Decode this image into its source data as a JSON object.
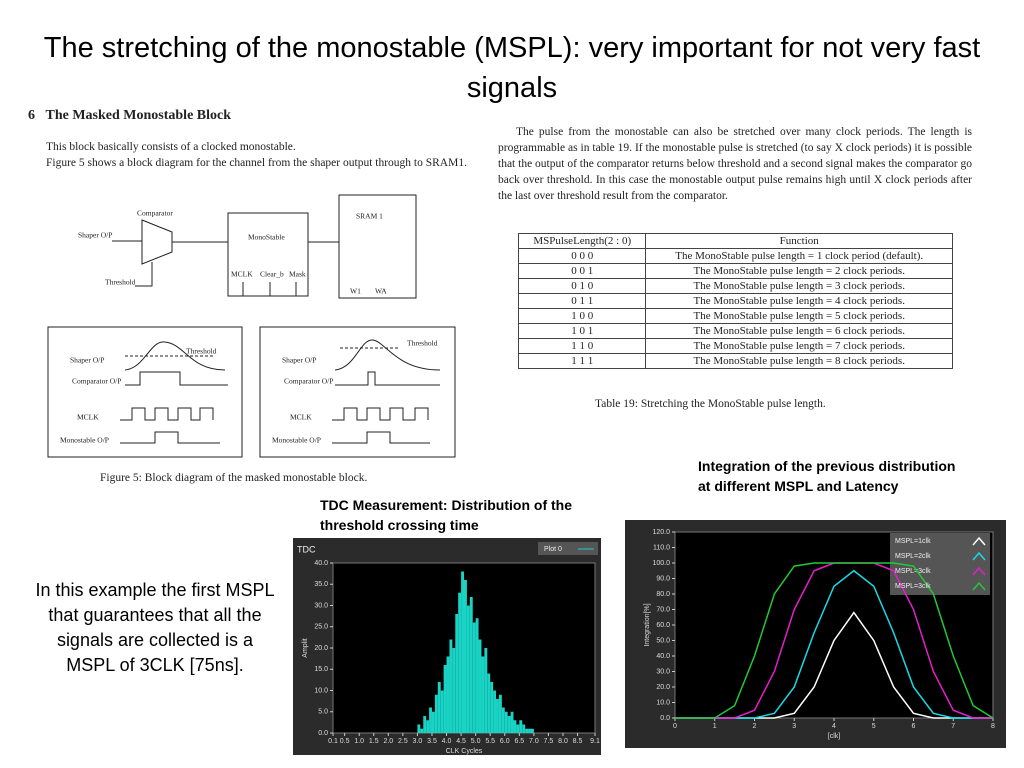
{
  "title": "The stretching of the monostable (MSPL): very important for not very fast signals",
  "section": {
    "number": "6",
    "heading": "The Masked Monostable Block",
    "paragraphs": [
      "This block basically consists of a clocked monostable.",
      "Figure 5 shows a block diagram for the channel from the shaper output through to SRAM1."
    ]
  },
  "block_diagram": {
    "comparator": "Comparator",
    "shaper_in": "Shaper O/P",
    "threshold": "Threshold",
    "monostable": "MonoStable",
    "mclk": "MCLK",
    "clear": "Clear_b",
    "mask": "Mask",
    "sram": "SRAM 1",
    "w1": "W1",
    "wa": "WA"
  },
  "timing_diagrams": [
    {
      "shaper": "Shaper O/P",
      "threshold": "Threshold",
      "comparator": "Comparator O/P",
      "mclk": "MCLK",
      "monostable": "Monostable O/P"
    },
    {
      "shaper": "Shaper O/P",
      "threshold": "Threshold",
      "comparator": "Comparator O/P",
      "mclk": "MCLK",
      "monostable": "Monostable  O/P"
    }
  ],
  "figure_caption": "Figure 5: Block diagram of the masked monostable block.",
  "right_paragraph": "The pulse from the monostable can also be stretched over many clock periods. The length is programmable as in table 19. If the monostable pulse is stretched (to say X clock periods) it is possible that the output of the comparator returns below threshold and a second signal makes the comparator go back over threshold. In this case the monostable output pulse remains high until X clock periods after the last over threshold result from the comparator.",
  "table": {
    "header": [
      "MSPulseLength(2 : 0)",
      "Function"
    ],
    "rows": [
      [
        "0 0 0",
        "The MonoStable pulse length = 1 clock period (default)."
      ],
      [
        "0 0 1",
        "The MonoStable pulse length = 2 clock periods."
      ],
      [
        "0 1 0",
        "The MonoStable pulse length = 3 clock periods."
      ],
      [
        "0 1 1",
        "The MonoStable pulse length = 4 clock periods."
      ],
      [
        "1 0 0",
        "The MonoStable pulse length = 5 clock periods."
      ],
      [
        "1 0 1",
        "The MonoStable pulse length = 6 clock periods."
      ],
      [
        "1 1 0",
        "The MonoStable pulse length = 7 clock periods."
      ],
      [
        "1 1 1",
        "The MonoStable pulse length = 8 clock periods."
      ]
    ]
  },
  "table_caption": "Table 19: Stretching the MonoStable pulse length.",
  "annotations": {
    "integration": "Integration of the previous distribution at different MSPL and Latency",
    "tdc": "TDC Measurement: Distribution of the threshold crossing time",
    "conclusion": "In this example the first MSPL that guarantees that all the signals are collected is a MSPL of 3CLK [75ns]."
  },
  "tdc_chart": {
    "type": "histogram",
    "title": "TDC",
    "legend": "Plot 0",
    "xlabel": "CLK Cycles",
    "ylabel": "Amplit",
    "color": "#19d3c5",
    "grid": false,
    "bins": [
      3.0,
      3.1,
      3.2,
      3.3,
      3.4,
      3.5,
      3.6,
      3.7,
      3.8,
      3.9,
      4.0,
      4.1,
      4.2,
      4.3,
      4.4,
      4.5,
      4.6,
      4.7,
      4.8,
      4.9,
      5.0,
      5.1,
      5.2,
      5.3,
      5.4,
      5.5,
      5.6,
      5.7,
      5.8,
      5.9,
      6.0,
      6.1,
      6.2,
      6.3,
      6.4,
      6.5,
      6.6,
      6.7,
      6.8,
      6.9,
      7.0
    ],
    "values": [
      2,
      1,
      4,
      3,
      6,
      5,
      9,
      12,
      10,
      16,
      18,
      22,
      20,
      28,
      33,
      38,
      36,
      30,
      32,
      26,
      27,
      22,
      18,
      20,
      14,
      12,
      10,
      8,
      9,
      6,
      5,
      4,
      5,
      3,
      2,
      3,
      2,
      1,
      1,
      1
    ],
    "xlim": [
      0.1,
      9.1
    ],
    "xticks": [
      {
        "value": 0.1,
        "label": "0.1"
      },
      {
        "value": 0.5,
        "label": "0.5"
      },
      {
        "value": 1.0,
        "label": "1.0"
      },
      {
        "value": 1.5,
        "label": "1.5"
      },
      {
        "value": 2.0,
        "label": "2.0"
      },
      {
        "value": 2.5,
        "label": "2.5"
      },
      {
        "value": 3.0,
        "label": "3.0"
      },
      {
        "value": 3.5,
        "label": "3.5"
      },
      {
        "value": 4.0,
        "label": "4.0"
      },
      {
        "value": 4.5,
        "label": "4.5"
      },
      {
        "value": 5.0,
        "label": "5.0"
      },
      {
        "value": 5.5,
        "label": "5.5"
      },
      {
        "value": 6.0,
        "label": "6.0"
      },
      {
        "value": 6.5,
        "label": "6.5"
      },
      {
        "value": 7.0,
        "label": "7.0"
      },
      {
        "value": 7.5,
        "label": "7.5"
      },
      {
        "value": 8.0,
        "label": "8.0"
      },
      {
        "value": 8.5,
        "label": "8.5"
      },
      {
        "value": 9.1,
        "label": "9.1"
      }
    ],
    "ylim": [
      0,
      40
    ],
    "yticks": [
      {
        "value": 0,
        "label": "0.0"
      },
      {
        "value": 5,
        "label": "5.0"
      },
      {
        "value": 10,
        "label": "10.0"
      },
      {
        "value": 15,
        "label": "15.0"
      },
      {
        "value": 20,
        "label": "20.0"
      },
      {
        "value": 25,
        "label": "25.0"
      },
      {
        "value": 30,
        "label": "30.0"
      },
      {
        "value": 35,
        "label": "35.0"
      },
      {
        "value": 40,
        "label": "40.0"
      }
    ]
  },
  "integration_chart": {
    "type": "line",
    "xlabel": "[clk]",
    "ylabel": "Integration[%]",
    "grid": false,
    "x": [
      0,
      0.5,
      1,
      1.5,
      2,
      2.5,
      3,
      3.5,
      4,
      4.5,
      5,
      5.5,
      6,
      6.5,
      7,
      7.5,
      8
    ],
    "series": [
      {
        "name": "MSPL=1clk",
        "color": "#ffffff",
        "values": [
          0,
          0,
          0,
          0,
          0,
          0,
          3,
          20,
          50,
          68,
          50,
          20,
          3,
          0,
          0,
          0,
          0
        ]
      },
      {
        "name": "MSPL=2clk",
        "color": "#19d9e6",
        "values": [
          0,
          0,
          0,
          0,
          0,
          3,
          20,
          55,
          85,
          95,
          85,
          55,
          20,
          3,
          0,
          0,
          0
        ]
      },
      {
        "name": "MSPL=3clk",
        "color": "#e61ec8",
        "values": [
          0,
          0,
          0,
          0,
          5,
          30,
          70,
          95,
          100,
          100,
          100,
          95,
          70,
          30,
          5,
          0,
          0
        ]
      },
      {
        "name": "MSPL=3clk",
        "color": "#22c838",
        "values": [
          0,
          0,
          0,
          8,
          40,
          80,
          98,
          100,
          100,
          100,
          100,
          100,
          98,
          80,
          40,
          8,
          0
        ]
      }
    ],
    "xlim": [
      0,
      8
    ],
    "xticks": [
      0,
      1,
      2,
      3,
      4,
      5,
      6,
      7,
      8
    ],
    "ylim": [
      0,
      120
    ],
    "yticks": [
      {
        "value": 0,
        "label": "0.0"
      },
      {
        "value": 10,
        "label": "10.0"
      },
      {
        "value": 20,
        "label": "20.0"
      },
      {
        "value": 30,
        "label": "30.0"
      },
      {
        "value": 40,
        "label": "40.0"
      },
      {
        "value": 50,
        "label": "50.0"
      },
      {
        "value": 60,
        "label": "60.0"
      },
      {
        "value": 70,
        "label": "70.0"
      },
      {
        "value": 80,
        "label": "80.0"
      },
      {
        "value": 90,
        "label": "90.0"
      },
      {
        "value": 100,
        "label": "100.0"
      },
      {
        "value": 110,
        "label": "110.0"
      },
      {
        "value": 120,
        "label": "120.0"
      }
    ]
  }
}
